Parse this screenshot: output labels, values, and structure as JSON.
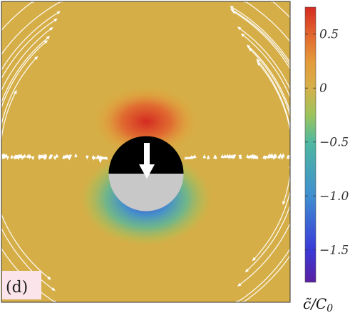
{
  "chart_data": {
    "type": "heatmap",
    "title": "",
    "panel_label": "(d)",
    "colorbar": {
      "label_main": "c̃",
      "label_sep": "/",
      "label_c": "C",
      "label_sub": "0",
      "range": [
        -1.8,
        0.75
      ],
      "ticks": [
        {
          "value": 0.5,
          "label": "0.5"
        },
        {
          "value": 0,
          "label": "0"
        },
        {
          "value": -0.5,
          "label": "−0.5"
        },
        {
          "value": -1.0,
          "label": "−1.0"
        },
        {
          "value": -1.5,
          "label": "−1.5"
        }
      ],
      "colors": [
        {
          "value": -1.8,
          "color": "#5a1fa0"
        },
        {
          "value": -1.5,
          "color": "#3a3ad8"
        },
        {
          "value": -1.0,
          "color": "#3f8fd0"
        },
        {
          "value": -0.5,
          "color": "#4fb8a0"
        },
        {
          "value": -0.25,
          "color": "#9cc45c"
        },
        {
          "value": 0,
          "color": "#d6b04a"
        },
        {
          "value": 0.25,
          "color": "#e49a3a"
        },
        {
          "value": 0.5,
          "color": "#e2652f"
        },
        {
          "value": 0.75,
          "color": "#d42a20"
        }
      ]
    },
    "field_background_color": "#d5ae47",
    "particle": {
      "upper_color": "#000000",
      "lower_color": "#c8c8c8",
      "arrow_direction": "down"
    },
    "streamlines_color": "#ffffff"
  }
}
